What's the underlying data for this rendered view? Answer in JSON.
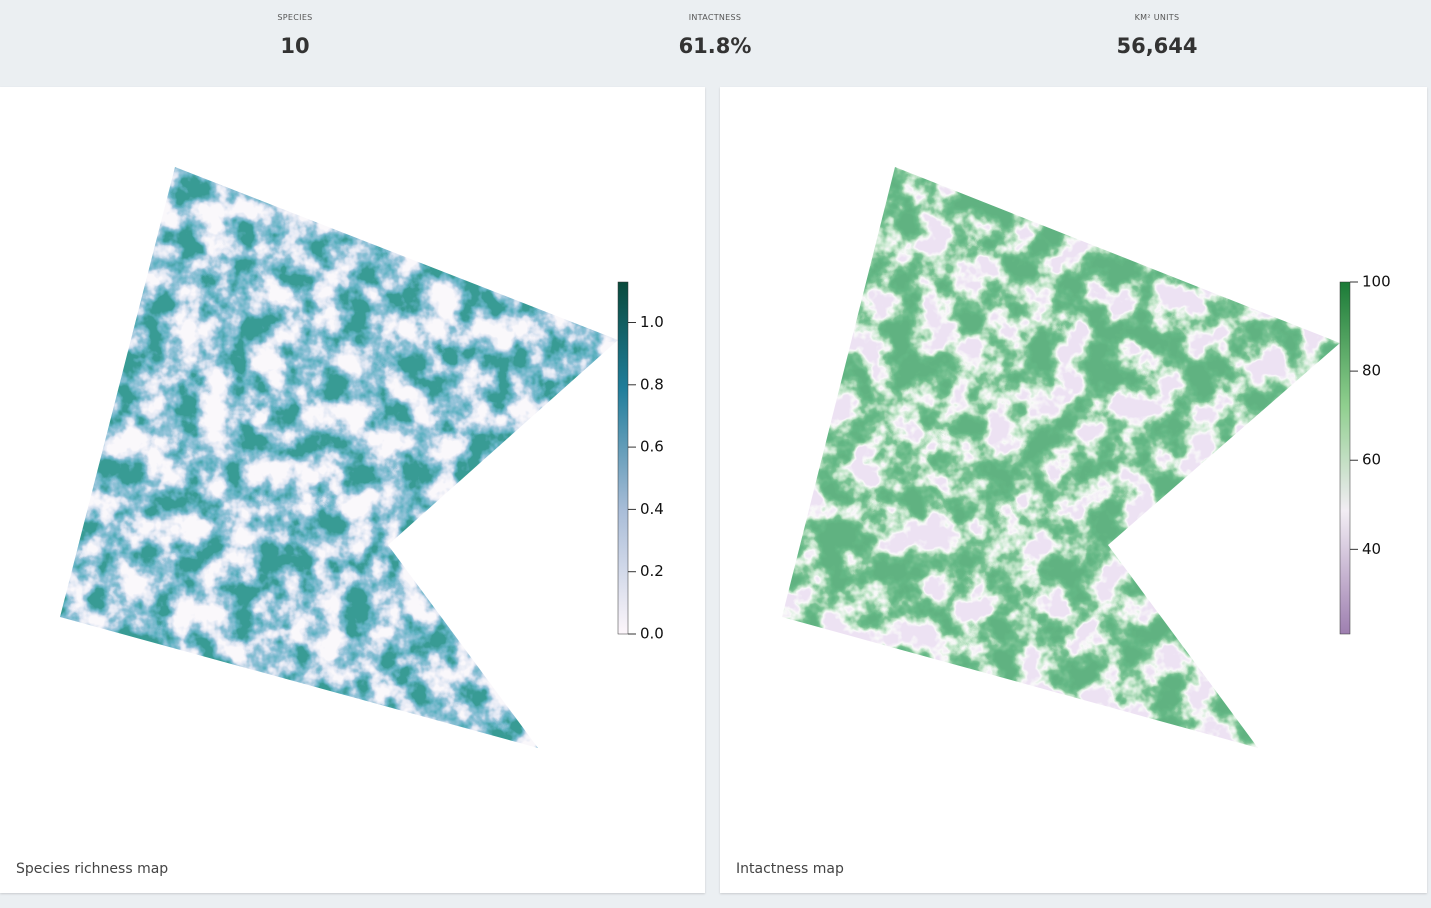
{
  "stats": [
    {
      "label": "SPECIES",
      "value": "10"
    },
    {
      "label": "INTACTNESS",
      "value": "61.8%"
    },
    {
      "label": "KM² UNITS",
      "value": "56,644"
    }
  ],
  "panels": [
    {
      "caption": "Species richness map",
      "legend": {
        "lim": [
          0,
          1.13
        ],
        "ticks": [
          {
            "value": 0,
            "label": "0.0"
          },
          0.2,
          0.4,
          0.6,
          0.8,
          {
            "value": 1,
            "label": "1.0"
          }
        ]
      }
    },
    {
      "caption": "Intactness map",
      "legend": {
        "lim": [
          21,
          100
        ],
        "ticks": [
          40,
          60,
          80,
          100
        ]
      }
    }
  ]
}
